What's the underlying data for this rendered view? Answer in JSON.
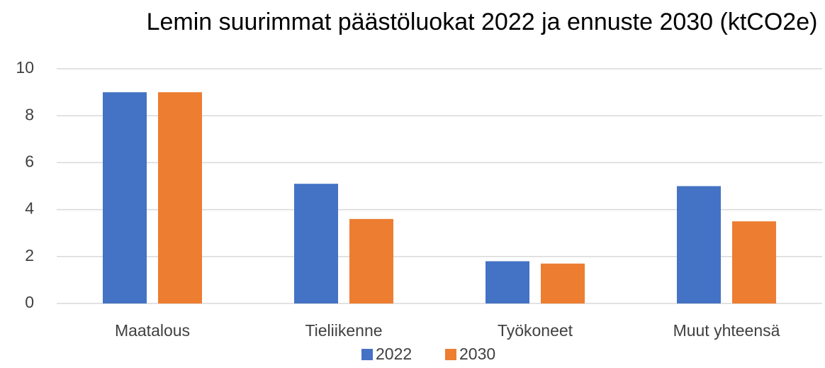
{
  "chart_data": {
    "type": "bar",
    "title": "Lemin suurimmat päästöluokat 2022 ja ennuste 2030 (ktCO2e)",
    "categories": [
      "Maatalous",
      "Tieliikenne",
      "Työkoneet",
      "Muut yhteensä"
    ],
    "series": [
      {
        "name": "2022",
        "color": "#4472c4",
        "values": [
          9.0,
          5.1,
          1.8,
          5.0
        ]
      },
      {
        "name": "2030",
        "color": "#ed7d31",
        "values": [
          9.0,
          3.6,
          1.7,
          3.5
        ]
      }
    ],
    "ylim": [
      0,
      10
    ],
    "yticks": [
      0,
      2,
      4,
      6,
      8,
      10
    ],
    "grid": true,
    "legend": "bottom"
  }
}
